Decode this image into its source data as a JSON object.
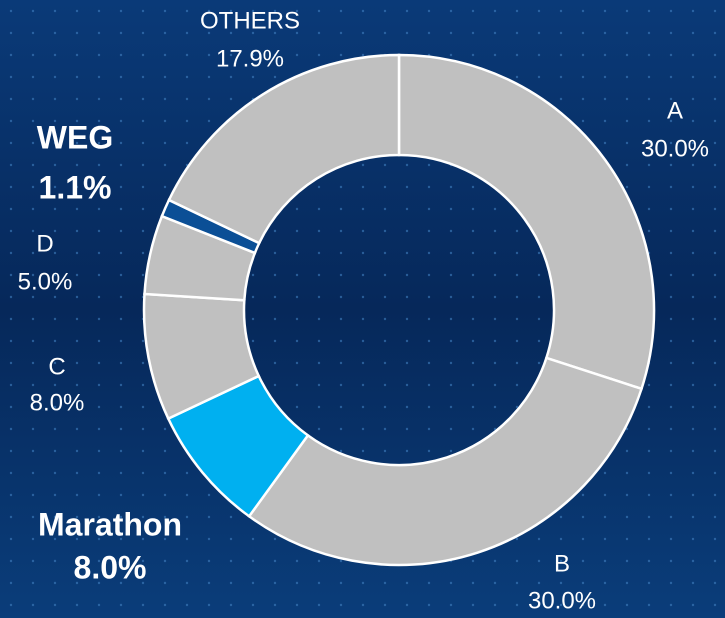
{
  "chart_data": {
    "type": "donut",
    "categories": [
      "A",
      "B",
      "Marathon",
      "C",
      "D",
      "WEG",
      "OTHERS"
    ],
    "values": [
      30.0,
      30.0,
      8.0,
      8.0,
      5.0,
      1.1,
      17.9
    ],
    "value_labels": [
      "30.0%",
      "30.0%",
      "8.0%",
      "8.0%",
      "5.0%",
      "1.1%",
      "17.9%"
    ],
    "colors": [
      "#c0c0c0",
      "#c0c0c0",
      "#00b0f0",
      "#c0c0c0",
      "#c0c0c0",
      "#0b4f96",
      "#c0c0c0"
    ]
  }
}
